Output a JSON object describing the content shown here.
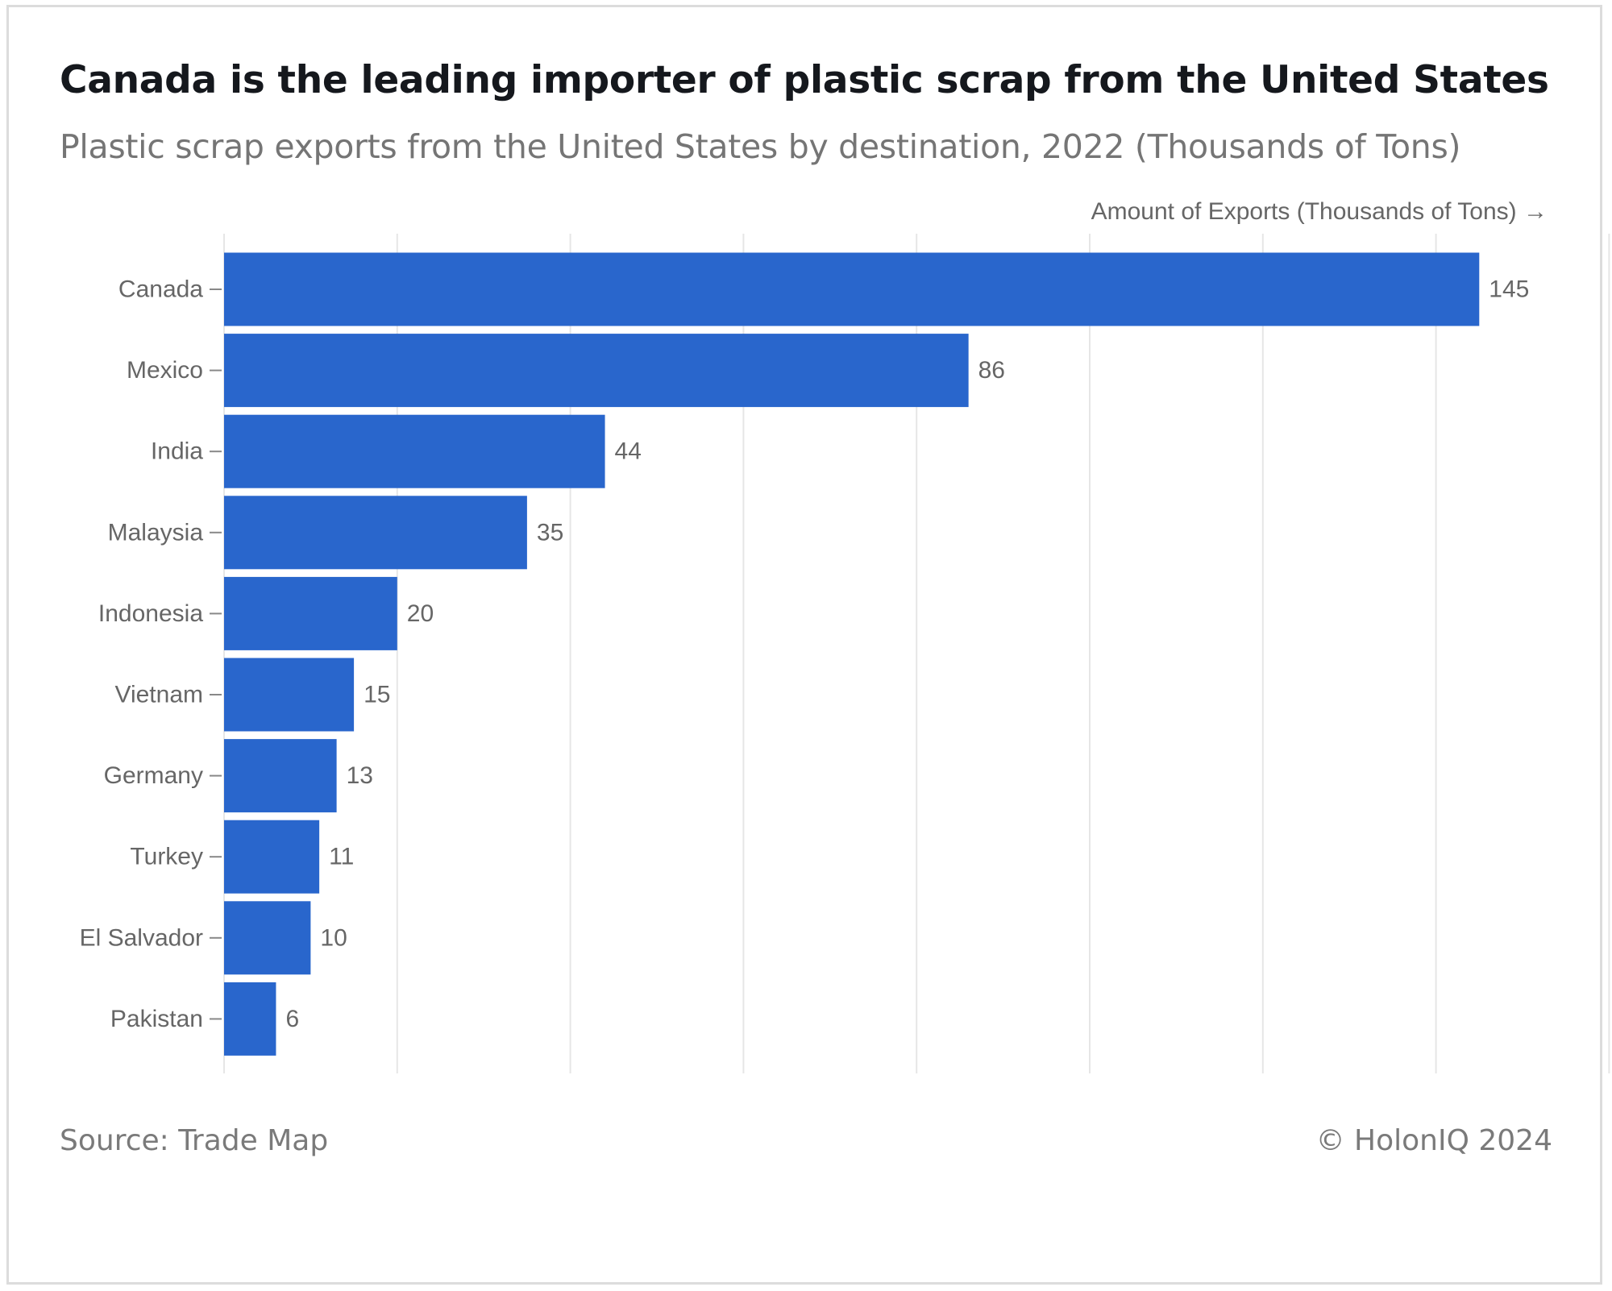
{
  "header": {
    "title": "Canada is the leading importer of plastic scrap from the United States",
    "subtitle": "Plastic scrap exports from the United States by destination, 2022 (Thousands of Tons)"
  },
  "footer": {
    "source": "Source: Trade Map",
    "copyright": "© HolonIQ 2024"
  },
  "colors": {
    "bar": "#2966cc",
    "grid": "#e6e6e6",
    "axis_text": "#666666"
  },
  "chart_data": {
    "type": "bar",
    "orientation": "horizontal",
    "title": "Canada is the leading importer of plastic scrap from the United States",
    "subtitle": "Plastic scrap exports from the United States by destination, 2022 (Thousands of Tons)",
    "xlabel": "Amount of Exports (Thousands of Tons) →",
    "ylabel": "",
    "categories": [
      "Canada",
      "Mexico",
      "India",
      "Malaysia",
      "Indonesia",
      "Vietnam",
      "Germany",
      "Turkey",
      "El Salvador",
      "Pakistan"
    ],
    "values": [
      145,
      86,
      44,
      35,
      20,
      15,
      13,
      11,
      10,
      6
    ],
    "data_labels": [
      "145",
      "86",
      "44",
      "35",
      "20",
      "15",
      "13",
      "11",
      "10",
      "6"
    ],
    "xlim": [
      0,
      160
    ],
    "grid_step": 20,
    "grid": true,
    "tick_labels_shown": false
  }
}
